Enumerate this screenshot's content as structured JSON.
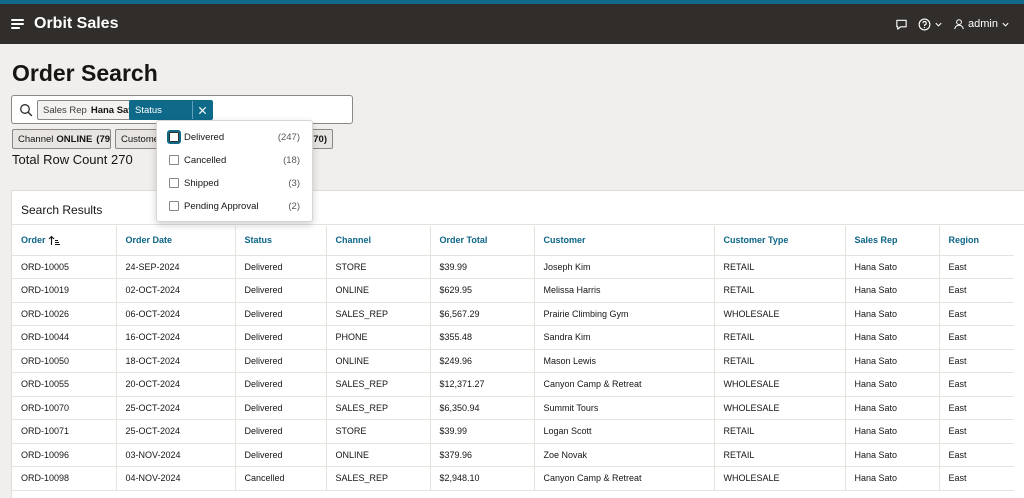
{
  "app": {
    "title": "Orbit Sales",
    "user": "admin"
  },
  "colors": {
    "brand_stripe": "#0f6a8a",
    "header_bg": "#312d2a",
    "link": "#0d6587",
    "chip_active": "#0f6a8a"
  },
  "page": {
    "title": "Order Search",
    "row_count_label": "Total Row Count 270"
  },
  "search": {
    "chips": [
      {
        "label": "Sales Rep",
        "value": "Hana Sato"
      },
      {
        "label": "Status",
        "value": ""
      }
    ]
  },
  "facets": [
    {
      "label": "Channel",
      "value": "ONLINE",
      "count": "(79)"
    },
    {
      "label": "Custome",
      "value": "",
      "count": ""
    },
    {
      "label": "",
      "value": "",
      "count": "70)"
    }
  ],
  "status_dropdown": {
    "options": [
      {
        "label": "Delivered",
        "count": "(247)"
      },
      {
        "label": "Cancelled",
        "count": "(18)"
      },
      {
        "label": "Shipped",
        "count": "(3)"
      },
      {
        "label": "Pending Approval",
        "count": "(2)"
      }
    ]
  },
  "results": {
    "title": "Search Results",
    "columns": [
      "Order",
      "Order Date",
      "Status",
      "Channel",
      "Order Total",
      "Customer",
      "Customer Type",
      "Sales Rep",
      "Region"
    ],
    "rows": [
      [
        "ORD-10005",
        "24-SEP-2024",
        "Delivered",
        "STORE",
        "$39.99",
        "Joseph Kim",
        "RETAIL",
        "Hana Sato",
        "East"
      ],
      [
        "ORD-10019",
        "02-OCT-2024",
        "Delivered",
        "ONLINE",
        "$629.95",
        "Melissa Harris",
        "RETAIL",
        "Hana Sato",
        "East"
      ],
      [
        "ORD-10026",
        "06-OCT-2024",
        "Delivered",
        "SALES_REP",
        "$6,567.29",
        "Prairie Climbing Gym",
        "WHOLESALE",
        "Hana Sato",
        "East"
      ],
      [
        "ORD-10044",
        "16-OCT-2024",
        "Delivered",
        "PHONE",
        "$355.48",
        "Sandra Kim",
        "RETAIL",
        "Hana Sato",
        "East"
      ],
      [
        "ORD-10050",
        "18-OCT-2024",
        "Delivered",
        "ONLINE",
        "$249.96",
        "Mason Lewis",
        "RETAIL",
        "Hana Sato",
        "East"
      ],
      [
        "ORD-10055",
        "20-OCT-2024",
        "Delivered",
        "SALES_REP",
        "$12,371.27",
        "Canyon Camp & Retreat",
        "WHOLESALE",
        "Hana Sato",
        "East"
      ],
      [
        "ORD-10070",
        "25-OCT-2024",
        "Delivered",
        "SALES_REP",
        "$6,350.94",
        "Summit Tours",
        "WHOLESALE",
        "Hana Sato",
        "East"
      ],
      [
        "ORD-10071",
        "25-OCT-2024",
        "Delivered",
        "STORE",
        "$39.99",
        "Logan Scott",
        "RETAIL",
        "Hana Sato",
        "East"
      ],
      [
        "ORD-10096",
        "03-NOV-2024",
        "Delivered",
        "ONLINE",
        "$379.96",
        "Zoe Novak",
        "RETAIL",
        "Hana Sato",
        "East"
      ],
      [
        "ORD-10098",
        "04-NOV-2024",
        "Cancelled",
        "SALES_REP",
        "$2,948.10",
        "Canyon Camp & Retreat",
        "WHOLESALE",
        "Hana Sato",
        "East"
      ]
    ]
  }
}
